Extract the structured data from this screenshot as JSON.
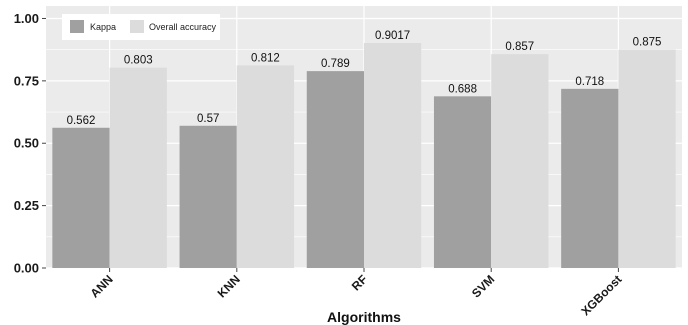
{
  "chart_data": {
    "type": "bar",
    "title": "",
    "xlabel": "Algorithms",
    "ylabel": "",
    "categories": [
      "ANN",
      "KNN",
      "RF",
      "SVM",
      "XGBoost"
    ],
    "series": [
      {
        "name": "Kappa",
        "color": "#a0a0a0",
        "values": [
          0.562,
          0.57,
          0.789,
          0.688,
          0.718
        ],
        "labels": [
          "0.562",
          "0.57",
          "0.789",
          "0.688",
          "0.718"
        ]
      },
      {
        "name": "Overall accuracy",
        "color": "#dcdcdc",
        "values": [
          0.803,
          0.812,
          0.9017,
          0.857,
          0.875
        ],
        "labels": [
          "0.803",
          "0.812",
          "0.9017",
          "0.857",
          "0.875"
        ]
      }
    ],
    "ylim": [
      0,
      1.05
    ],
    "yticks": [
      0,
      0.25,
      0.5,
      0.75,
      1.0
    ],
    "ytick_labels": [
      "0.00",
      "0.25",
      "0.50",
      "0.75",
      "1.00"
    ],
    "grid": true,
    "legend_position": "top-left",
    "panel_color": "#ebebeb",
    "grid_color": "#ffffff"
  }
}
